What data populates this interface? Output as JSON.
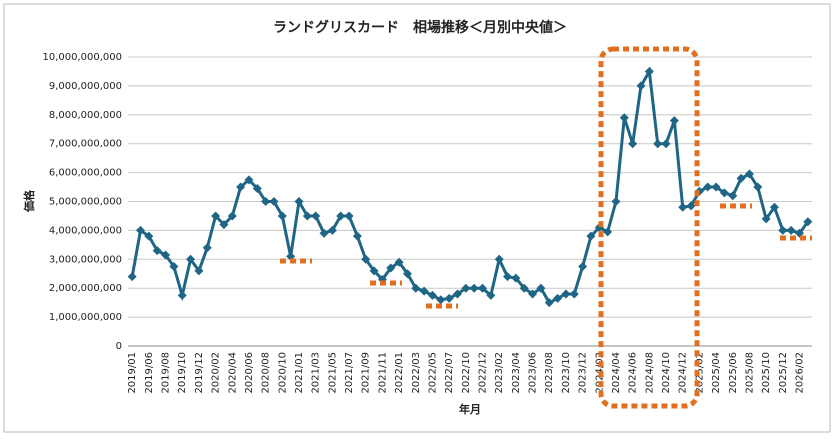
{
  "chart_data": {
    "type": "line",
    "title": "ランドグリスカード　相場推移＜月別中央値＞",
    "x_label": "年月",
    "y_label": "価格",
    "categories": [
      "2019/01",
      null,
      "2019/06",
      null,
      "2019/08",
      null,
      "2019/10",
      null,
      "2019/12",
      null,
      "2020/02",
      null,
      "2020/04",
      null,
      "2020/06",
      null,
      "2020/08",
      null,
      "2020/10",
      null,
      "2021/01",
      null,
      "2021/03",
      null,
      "2021/05",
      null,
      "2021/07",
      null,
      "2021/09",
      null,
      "2021/11",
      null,
      "2022/01",
      null,
      "2022/03",
      null,
      "2022/05",
      null,
      "2022/07",
      null,
      "2022/10",
      null,
      "2022/12",
      null,
      "2023/02",
      null,
      "2023/04",
      null,
      "2023/06",
      null,
      "2023/08",
      null,
      "2023/10",
      null,
      "2023/12",
      null,
      "2024/02",
      null,
      "2024/04",
      null,
      "2024/06",
      null,
      "2024/08",
      null,
      "2024/10",
      null,
      "2024/12",
      null,
      "2025/02",
      null,
      "2025/04",
      null,
      "2025/06",
      null,
      "2025/08",
      null,
      "2025/10",
      null,
      "2025/12",
      null,
      "2026/02",
      null
    ],
    "series": [
      {
        "name": "価格",
        "color": "#1f6585",
        "values": [
          2400000000,
          4000000000,
          3800000000,
          3300000000,
          3150000000,
          2750000000,
          1750000000,
          3000000000,
          2600000000,
          3400000000,
          4500000000,
          4200000000,
          4500000000,
          5500000000,
          5750000000,
          5450000000,
          5000000000,
          5000000000,
          4500000000,
          3100000000,
          5000000000,
          4500000000,
          4500000000,
          3900000000,
          4000000000,
          4500000000,
          4500000000,
          3800000000,
          3000000000,
          2600000000,
          2300000000,
          2700000000,
          2900000000,
          2500000000,
          2000000000,
          1900000000,
          1750000000,
          1600000000,
          1650000000,
          1800000000,
          2000000000,
          2000000000,
          2000000000,
          1750000000,
          3000000000,
          2400000000,
          2350000000,
          2000000000,
          1800000000,
          2000000000,
          1500000000,
          1650000000,
          1800000000,
          1800000000,
          2750000000,
          3800000000,
          4100000000,
          3950000000,
          5000000000,
          7900000000,
          7000000000,
          9000000000,
          9500000000,
          7000000000,
          7000000000,
          7800000000,
          4800000000,
          4850000000,
          5350000000,
          5500000000,
          5500000000,
          5300000000,
          5200000000,
          5800000000,
          5950000000,
          5500000000,
          4400000000,
          4800000000,
          4000000000,
          4000000000,
          3900000000,
          4300000000
        ]
      }
    ],
    "ylim": [
      0,
      10000000000
    ],
    "yticks": [
      0,
      {
        "value": 1000000000,
        "label": "1,000,000,000"
      },
      {
        "value": 2000000000,
        "label": "2,000,000,000"
      },
      {
        "value": 3000000000,
        "label": "3,000,000,000"
      },
      {
        "value": 4000000000,
        "label": "4,000,000,000"
      },
      {
        "value": 5000000000,
        "label": "5,000,000,000"
      },
      {
        "value": 6000000000,
        "label": "6,000,000,000"
      },
      {
        "value": 7000000000,
        "label": "7,000,000,000"
      },
      {
        "value": 8000000000,
        "label": "8,000,000,000"
      },
      {
        "value": 9000000000,
        "label": "9,000,000,000"
      },
      {
        "value": 10000000000,
        "label": "10,000,000,000"
      }
    ],
    "grid": true
  }
}
